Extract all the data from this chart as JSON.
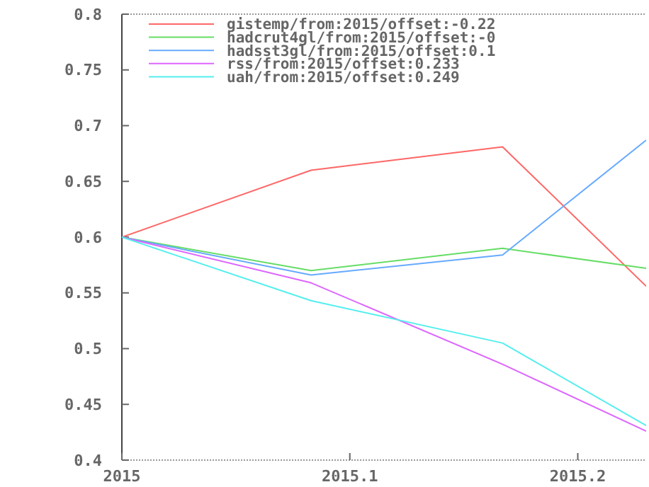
{
  "chart_data": {
    "type": "line",
    "x": [
      2015,
      2015.083,
      2015.167,
      2015.23
    ],
    "xlim": [
      2015,
      2015.23
    ],
    "xticks": [
      {
        "value": 2015,
        "label": "2015"
      },
      {
        "value": 2015.1,
        "label": "2015.1"
      },
      {
        "value": 2015.2,
        "label": "2015.2"
      }
    ],
    "ylim": [
      0.4,
      0.8
    ],
    "yticks": [
      0.4,
      0.45,
      0.5,
      0.55,
      0.6,
      0.65,
      0.7,
      0.75,
      0.8
    ],
    "grid": false,
    "legend": "top",
    "marker": "none",
    "line_style": "solid",
    "series": [
      {
        "name": "gistemp/from:2015/offset:-0.22",
        "color": "#ff6666",
        "values": [
          0.6,
          0.66,
          0.681,
          0.556
        ]
      },
      {
        "name": "hadcrut4gl/from:2015/offset:-0",
        "color": "#66dd66",
        "values": [
          0.6,
          0.57,
          0.59,
          0.572
        ]
      },
      {
        "name": "hadsst3gl/from:2015/offset:0.1",
        "color": "#66aaff",
        "values": [
          0.6,
          0.566,
          0.584,
          0.687
        ]
      },
      {
        "name": "rss/from:2015/offset:0.233",
        "color": "#dd66ff",
        "values": [
          0.6,
          0.559,
          0.486,
          0.426
        ]
      },
      {
        "name": "uah/from:2015/offset:0.249",
        "color": "#55eeee",
        "values": [
          0.6,
          0.543,
          0.505,
          0.431
        ]
      }
    ]
  }
}
